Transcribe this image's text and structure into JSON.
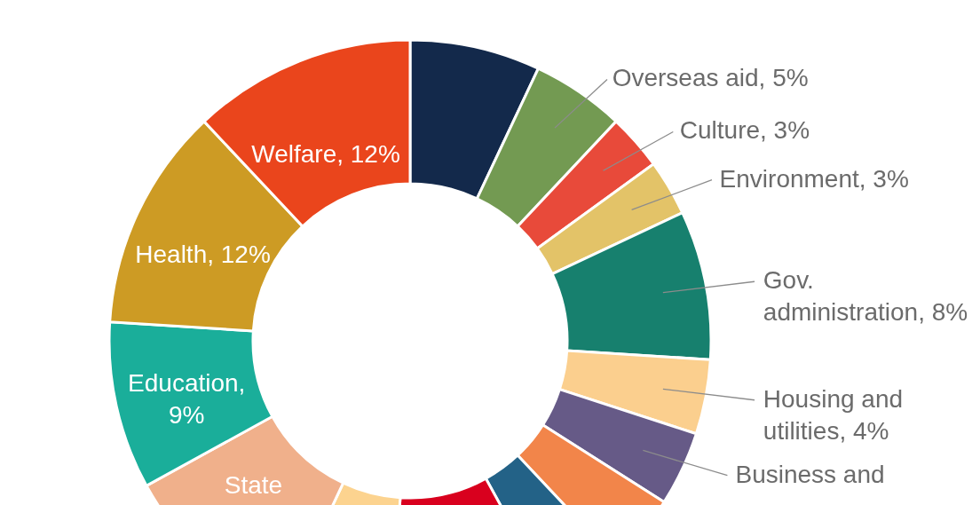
{
  "chart_data": {
    "type": "donut",
    "categories": [
      null,
      "Overseas aid, 5%",
      "Culture, 3%",
      "Environment, 3%",
      "Gov. administration, 8%",
      "Housing and utilities, 4%",
      "Business and",
      null,
      null,
      null,
      null,
      "State",
      "Education, 9%",
      "Health, 12%",
      "Welfare, 12%"
    ],
    "values": [
      7,
      5,
      3,
      3,
      8,
      4,
      4,
      4,
      4,
      9,
      6,
      10,
      9,
      12,
      12
    ],
    "colors": [
      "#13294b",
      "#739a52",
      "#e84a3a",
      "#e3c368",
      "#17806e",
      "#fbcf8e",
      "#665a87",
      "#f2854a",
      "#236287",
      "#d9001e",
      "#fcd38f",
      "#f0b08b",
      "#1aae9a",
      "#cd9b24",
      "#ea451c"
    ]
  }
}
